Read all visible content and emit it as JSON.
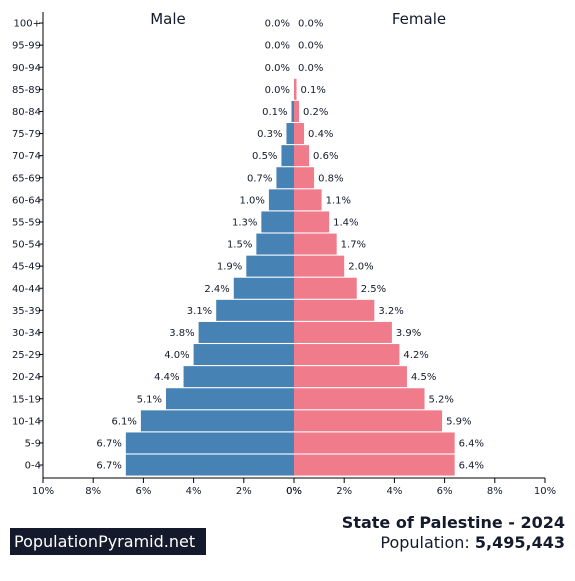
{
  "colors": {
    "male": "#4682b4",
    "female": "#f07b8a",
    "text": "#141a2c",
    "brand_background": "#141a2c",
    "brand_text": "#ffffff",
    "axis": "#000000"
  },
  "footer": {
    "brand": "PopulationPyramid.net",
    "title": "State of Palestine - 2024",
    "population_label": "Population:",
    "population_value": "5,495,443"
  },
  "chart_data": {
    "type": "bar",
    "orientation": "horizontal",
    "layout": "population-pyramid",
    "categories": [
      "100+",
      "95-99",
      "90-94",
      "85-89",
      "80-84",
      "75-79",
      "70-74",
      "65-69",
      "60-64",
      "55-59",
      "50-54",
      "45-49",
      "40-44",
      "35-39",
      "30-34",
      "25-29",
      "20-24",
      "15-19",
      "10-14",
      "5-9",
      "0-4"
    ],
    "series": [
      {
        "name": "Male",
        "values": [
          0.0,
          0.0,
          0.0,
          0.0,
          0.1,
          0.3,
          0.5,
          0.7,
          1.0,
          1.3,
          1.5,
          1.9,
          2.4,
          3.1,
          3.8,
          4.0,
          4.4,
          5.1,
          6.1,
          6.7,
          6.7
        ],
        "labels": [
          "0.0%",
          "0.0%",
          "0.0%",
          "0.0%",
          "0.1%",
          "0.3%",
          "0.5%",
          "0.7%",
          "1.0%",
          "1.3%",
          "1.5%",
          "1.9%",
          "2.4%",
          "3.1%",
          "3.8%",
          "4.0%",
          "4.4%",
          "5.1%",
          "6.1%",
          "6.7%",
          "6.7%"
        ]
      },
      {
        "name": "Female",
        "values": [
          0.0,
          0.0,
          0.0,
          0.1,
          0.2,
          0.4,
          0.6,
          0.8,
          1.1,
          1.4,
          1.7,
          2.0,
          2.5,
          3.2,
          3.9,
          4.2,
          4.5,
          5.2,
          5.9,
          6.4,
          6.4
        ],
        "labels": [
          "0.0%",
          "0.0%",
          "0.0%",
          "0.1%",
          "0.2%",
          "0.4%",
          "0.6%",
          "0.8%",
          "1.1%",
          "1.4%",
          "1.7%",
          "2.0%",
          "2.5%",
          "3.2%",
          "3.9%",
          "4.2%",
          "4.5%",
          "5.2%",
          "5.9%",
          "6.4%",
          "6.4%"
        ]
      }
    ],
    "xlim": [
      0,
      10
    ],
    "x_unit": "%",
    "left_ticks": [
      "10%",
      "8%",
      "6%",
      "4%",
      "2%",
      "0%"
    ],
    "right_ticks": [
      "0%",
      "2%",
      "4%",
      "6%",
      "8%",
      "10%"
    ],
    "grid": false
  }
}
